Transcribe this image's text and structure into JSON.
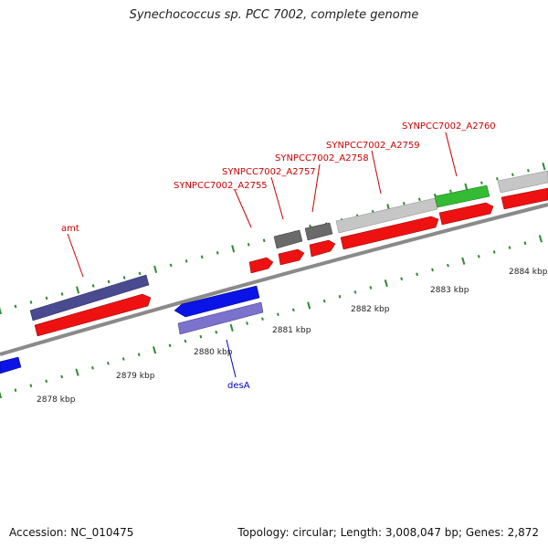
{
  "title": "Synechococcus sp. PCC 7002, complete genome",
  "footer": {
    "accession": "Accession: NC_010475",
    "topology": "Topology: circular; Length: 3,008,047 bp; Genes: 2,872"
  },
  "colors": {
    "backbone": "#8a8a8a",
    "ticks": "#2e8b2e",
    "label_red": "#cc0000",
    "label_blue": "#0000cc",
    "cds_red": "#ee1111",
    "gene_navy": "#4a4a90",
    "gene_blue": "#0a14e6",
    "gene_lavender": "#7a72cc",
    "gene_gray": "#6a6a6a",
    "gene_lightgray": "#c6c6c6",
    "gene_green": "#33bb33"
  },
  "scale_labels": [
    {
      "text": "2878 kbp"
    },
    {
      "text": "2879 kbp"
    },
    {
      "text": "2880 kbp"
    },
    {
      "text": "2881 kbp"
    },
    {
      "text": "2882 kbp"
    },
    {
      "text": "2883 kbp"
    },
    {
      "text": "2884 kbp"
    }
  ],
  "gene_labels": [
    {
      "text": "amt"
    },
    {
      "text": "desA"
    },
    {
      "text": "SYNPCC7002_A2755"
    },
    {
      "text": "SYNPCC7002_A2757"
    },
    {
      "text": "SYNPCC7002_A2758"
    },
    {
      "text": "SYNPCC7002_A2759"
    },
    {
      "text": "SYNPCC7002_A2760"
    }
  ]
}
